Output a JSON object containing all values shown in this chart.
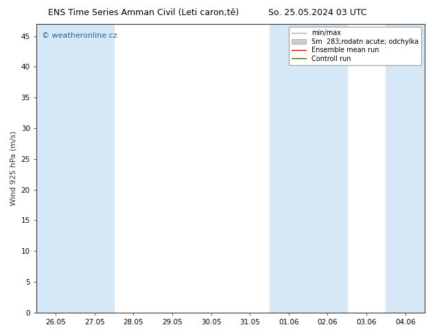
{
  "title_left": "ENS Time Series Amman Civil (Leti caron;tě)",
  "title_right": "So. 25.05.2024 03 UTC",
  "ylabel": "Wind 925 hPa (m/s)",
  "watermark": "© weatheronline.cz",
  "ylim": [
    0,
    47
  ],
  "yticks": [
    0,
    5,
    10,
    15,
    20,
    25,
    30,
    35,
    40,
    45
  ],
  "x_labels": [
    "26.05",
    "27.05",
    "28.05",
    "29.05",
    "30.05",
    "31.05",
    "01.06",
    "02.06",
    "03.06",
    "04.06"
  ],
  "x_values": [
    0,
    1,
    2,
    3,
    4,
    5,
    6,
    7,
    8,
    9
  ],
  "xlim": [
    -0.5,
    9.5
  ],
  "shaded_bands": [
    0,
    1,
    6,
    7,
    9
  ],
  "band_color": "#d6e8f5",
  "background_color": "#ffffff",
  "plot_bg_color": "#ffffff",
  "legend_items": [
    {
      "label": "min/max",
      "color": "#aaaaaa",
      "lw": 1.0,
      "type": "line"
    },
    {
      "label": "Sm  283;rodatn acute; odchylka",
      "color": "#cccccc",
      "lw": 5,
      "type": "fill"
    },
    {
      "label": "Ensemble mean run",
      "color": "#cc0000",
      "lw": 1.0,
      "type": "line"
    },
    {
      "label": "Controll run",
      "color": "#336600",
      "lw": 1.0,
      "type": "line"
    }
  ],
  "title_fontsize": 9,
  "tick_fontsize": 7.5,
  "label_fontsize": 8,
  "watermark_fontsize": 8
}
